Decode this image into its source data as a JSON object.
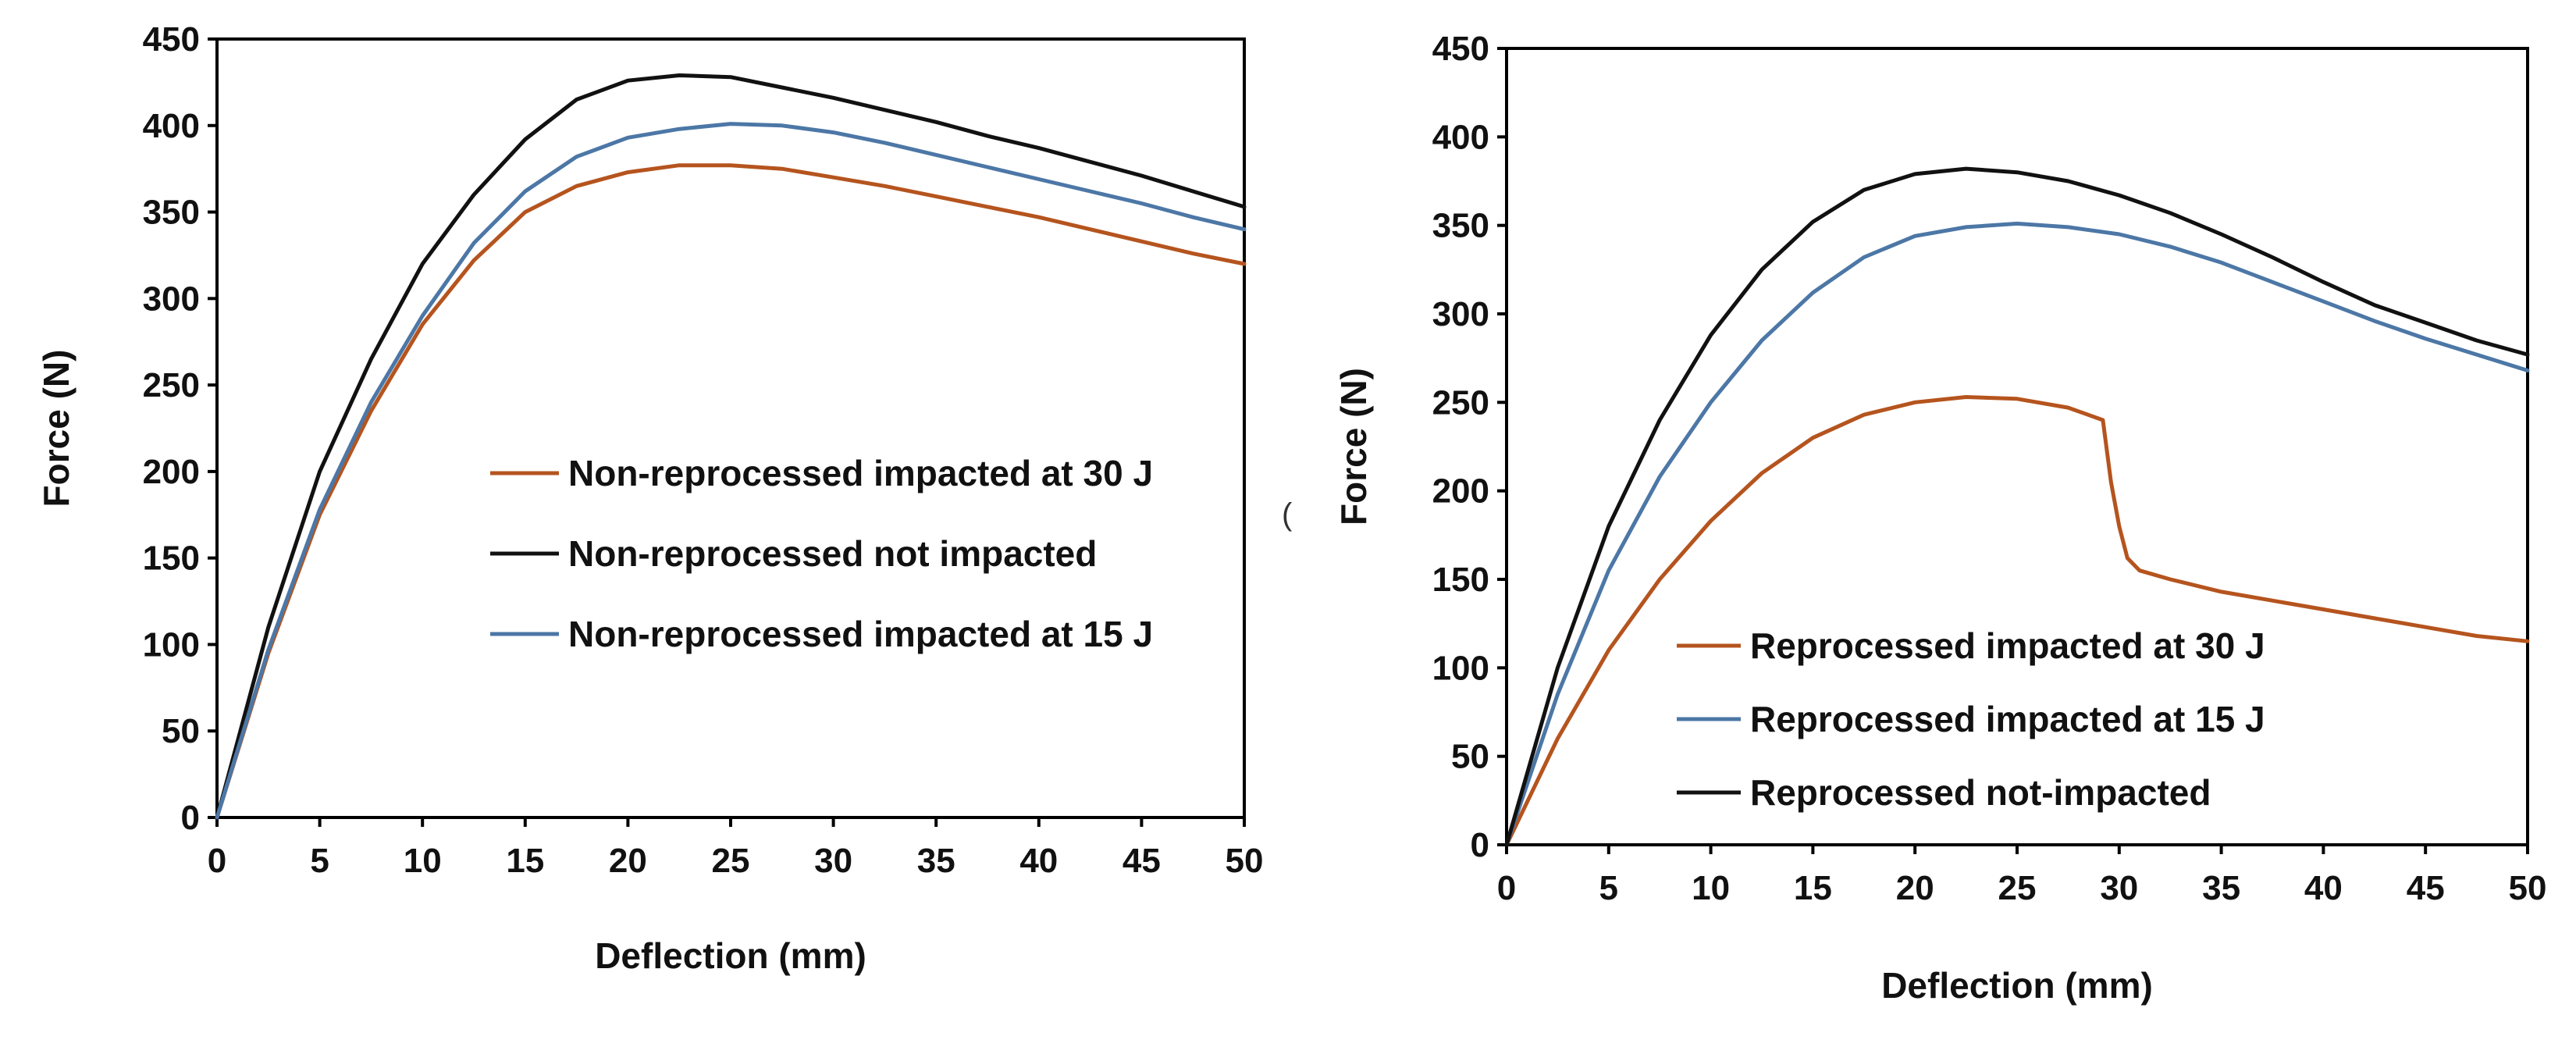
{
  "chart_data": [
    {
      "type": "line",
      "title": "",
      "xlabel": "Deflection (mm)",
      "ylabel": "Force (N)",
      "xlim": [
        0,
        50
      ],
      "ylim": [
        0,
        450
      ],
      "xticks": [
        "0",
        "5",
        "10",
        "15",
        "20",
        "25",
        "30",
        "35",
        "40",
        "45",
        "50"
      ],
      "yticks": [
        "0",
        "50",
        "100",
        "150",
        "200",
        "250",
        "300",
        "350",
        "400",
        "450"
      ],
      "legend_position": "center-right",
      "series": [
        {
          "name": "Non-reprocessed impacted at 30 J",
          "color": "#b5541e",
          "x": [
            0,
            2.5,
            5,
            7.5,
            10,
            12.5,
            15,
            17.5,
            20,
            22.5,
            25,
            27.5,
            30,
            32.5,
            35,
            37.5,
            40,
            42.5,
            45,
            47.5,
            50
          ],
          "y": [
            0,
            95,
            175,
            235,
            285,
            322,
            350,
            365,
            373,
            377,
            377,
            375,
            370,
            365,
            359,
            353,
            347,
            340,
            333,
            326,
            320
          ]
        },
        {
          "name": "Non-reprocessed not impacted",
          "color": "#111111",
          "x": [
            0,
            2.5,
            5,
            7.5,
            10,
            12.5,
            15,
            17.5,
            20,
            22.5,
            25,
            27.5,
            30,
            32.5,
            35,
            37.5,
            40,
            42.5,
            45,
            47.5,
            50
          ],
          "y": [
            0,
            110,
            200,
            265,
            320,
            360,
            392,
            415,
            426,
            429,
            428,
            422,
            416,
            409,
            402,
            394,
            387,
            379,
            371,
            362,
            353
          ]
        },
        {
          "name": "Non-reprocessed impacted at 15 J",
          "color": "#4c77a6",
          "x": [
            0,
            2.5,
            5,
            7.5,
            10,
            12.5,
            15,
            17.5,
            20,
            22.5,
            25,
            27.5,
            30,
            32.5,
            35,
            37.5,
            40,
            42.5,
            45,
            47.5,
            50
          ],
          "y": [
            0,
            97,
            178,
            240,
            290,
            332,
            362,
            382,
            393,
            398,
            401,
            400,
            396,
            390,
            383,
            376,
            369,
            362,
            355,
            347,
            340
          ]
        }
      ]
    },
    {
      "type": "line",
      "title": "",
      "xlabel": "Deflection (mm)",
      "ylabel": "Force (N)",
      "xlim": [
        0,
        50
      ],
      "ylim": [
        0,
        450
      ],
      "xticks": [
        "0",
        "5",
        "10",
        "15",
        "20",
        "25",
        "30",
        "35",
        "40",
        "45",
        "50"
      ],
      "yticks": [
        "0",
        "50",
        "100",
        "150",
        "200",
        "250",
        "300",
        "350",
        "400",
        "450"
      ],
      "legend_position": "bottom-center",
      "series": [
        {
          "name": "Reprocessed impacted at 30 J",
          "color": "#b5541e",
          "x": [
            0,
            2.5,
            5,
            7.5,
            10,
            12.5,
            15,
            17.5,
            20,
            22.5,
            25,
            27.5,
            29.2,
            29.6,
            30,
            30.4,
            31,
            32.5,
            35,
            37.5,
            40,
            42.5,
            45,
            47.5,
            50
          ],
          "y": [
            0,
            60,
            110,
            150,
            183,
            210,
            230,
            243,
            250,
            253,
            252,
            247,
            240,
            205,
            180,
            162,
            155,
            150,
            143,
            138,
            133,
            128,
            123,
            118,
            115
          ]
        },
        {
          "name": "Reprocessed impacted at 15 J",
          "color": "#4c77a6",
          "x": [
            0,
            2.5,
            5,
            7.5,
            10,
            12.5,
            15,
            17.5,
            20,
            22.5,
            25,
            27.5,
            30,
            32.5,
            35,
            37.5,
            40,
            42.5,
            45,
            47.5,
            50
          ],
          "y": [
            0,
            85,
            155,
            208,
            250,
            285,
            312,
            332,
            344,
            349,
            351,
            349,
            345,
            338,
            329,
            318,
            307,
            296,
            286,
            277,
            268
          ]
        },
        {
          "name": "Reprocessed not-impacted",
          "color": "#111111",
          "x": [
            0,
            2.5,
            5,
            7.5,
            10,
            12.5,
            15,
            17.5,
            20,
            22.5,
            25,
            27.5,
            30,
            32.5,
            35,
            37.5,
            40,
            42.5,
            45,
            47.5,
            50
          ],
          "y": [
            0,
            100,
            180,
            240,
            288,
            325,
            352,
            370,
            379,
            382,
            380,
            375,
            367,
            357,
            345,
            332,
            318,
            305,
            295,
            285,
            277
          ]
        }
      ]
    }
  ],
  "stray_mark": "("
}
